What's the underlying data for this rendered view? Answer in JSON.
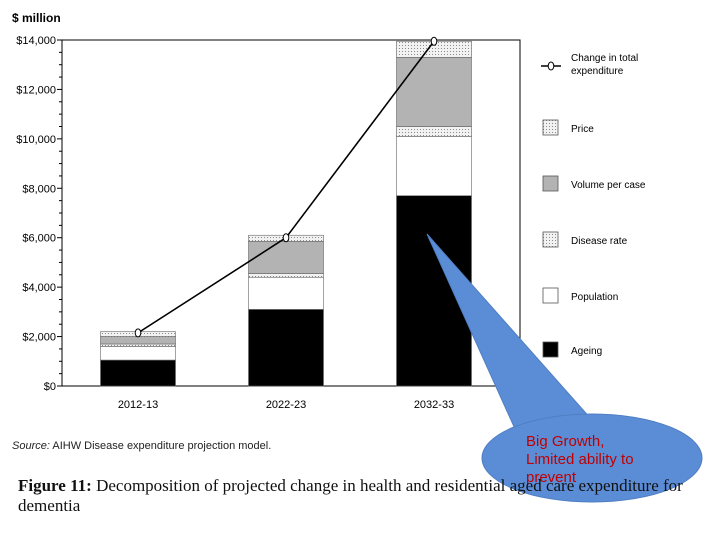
{
  "chart_data": {
    "type": "bar",
    "stacked": true,
    "ylabel": "$ million",
    "ylim": [
      0,
      14000
    ],
    "y_ticks": [
      "$0",
      "$2,000",
      "$4,000",
      "$6,000",
      "$8,000",
      "$10,000",
      "$12,000",
      "$14,000"
    ],
    "y_tick_values": [
      0,
      2000,
      4000,
      6000,
      8000,
      10000,
      12000,
      14000
    ],
    "categories": [
      "2012-13",
      "2022-23",
      "2032-33"
    ],
    "series": [
      {
        "name": "Ageing",
        "color": "#000000",
        "values": [
          1050,
          3100,
          7700
        ]
      },
      {
        "name": "Population",
        "color": "#ffffff",
        "values": [
          550,
          1300,
          2400
        ]
      },
      {
        "name": "Disease rate",
        "color": "#e0e0e0",
        "pattern": "dotted",
        "values": [
          100,
          150,
          400
        ]
      },
      {
        "name": "Volume per case",
        "color": "#b3b3b3",
        "values": [
          300,
          1300,
          2800
        ]
      },
      {
        "name": "Price",
        "color": "#e6e6e6",
        "pattern": "dotted",
        "values": [
          200,
          250,
          650
        ]
      }
    ],
    "line_series": {
      "name": "Change in total expenditure",
      "values": [
        2150,
        6000,
        13950
      ]
    },
    "legend_position": "right",
    "legend_order": [
      "Change in total expenditure",
      "Price",
      "Volume per case",
      "Disease rate",
      "Population",
      "Ageing"
    ],
    "grid": false
  },
  "annotation": {
    "text": "Big Growth, Limited ability to prevent",
    "color": "#5b8dd6",
    "text_color": "#c00000"
  },
  "source": {
    "label": "Source:",
    "text": " AIHW Disease expenditure projection model."
  },
  "caption": {
    "label": "Figure 11: ",
    "text": "Decomposition of projected change in health and residential aged care expenditure for dementia"
  }
}
